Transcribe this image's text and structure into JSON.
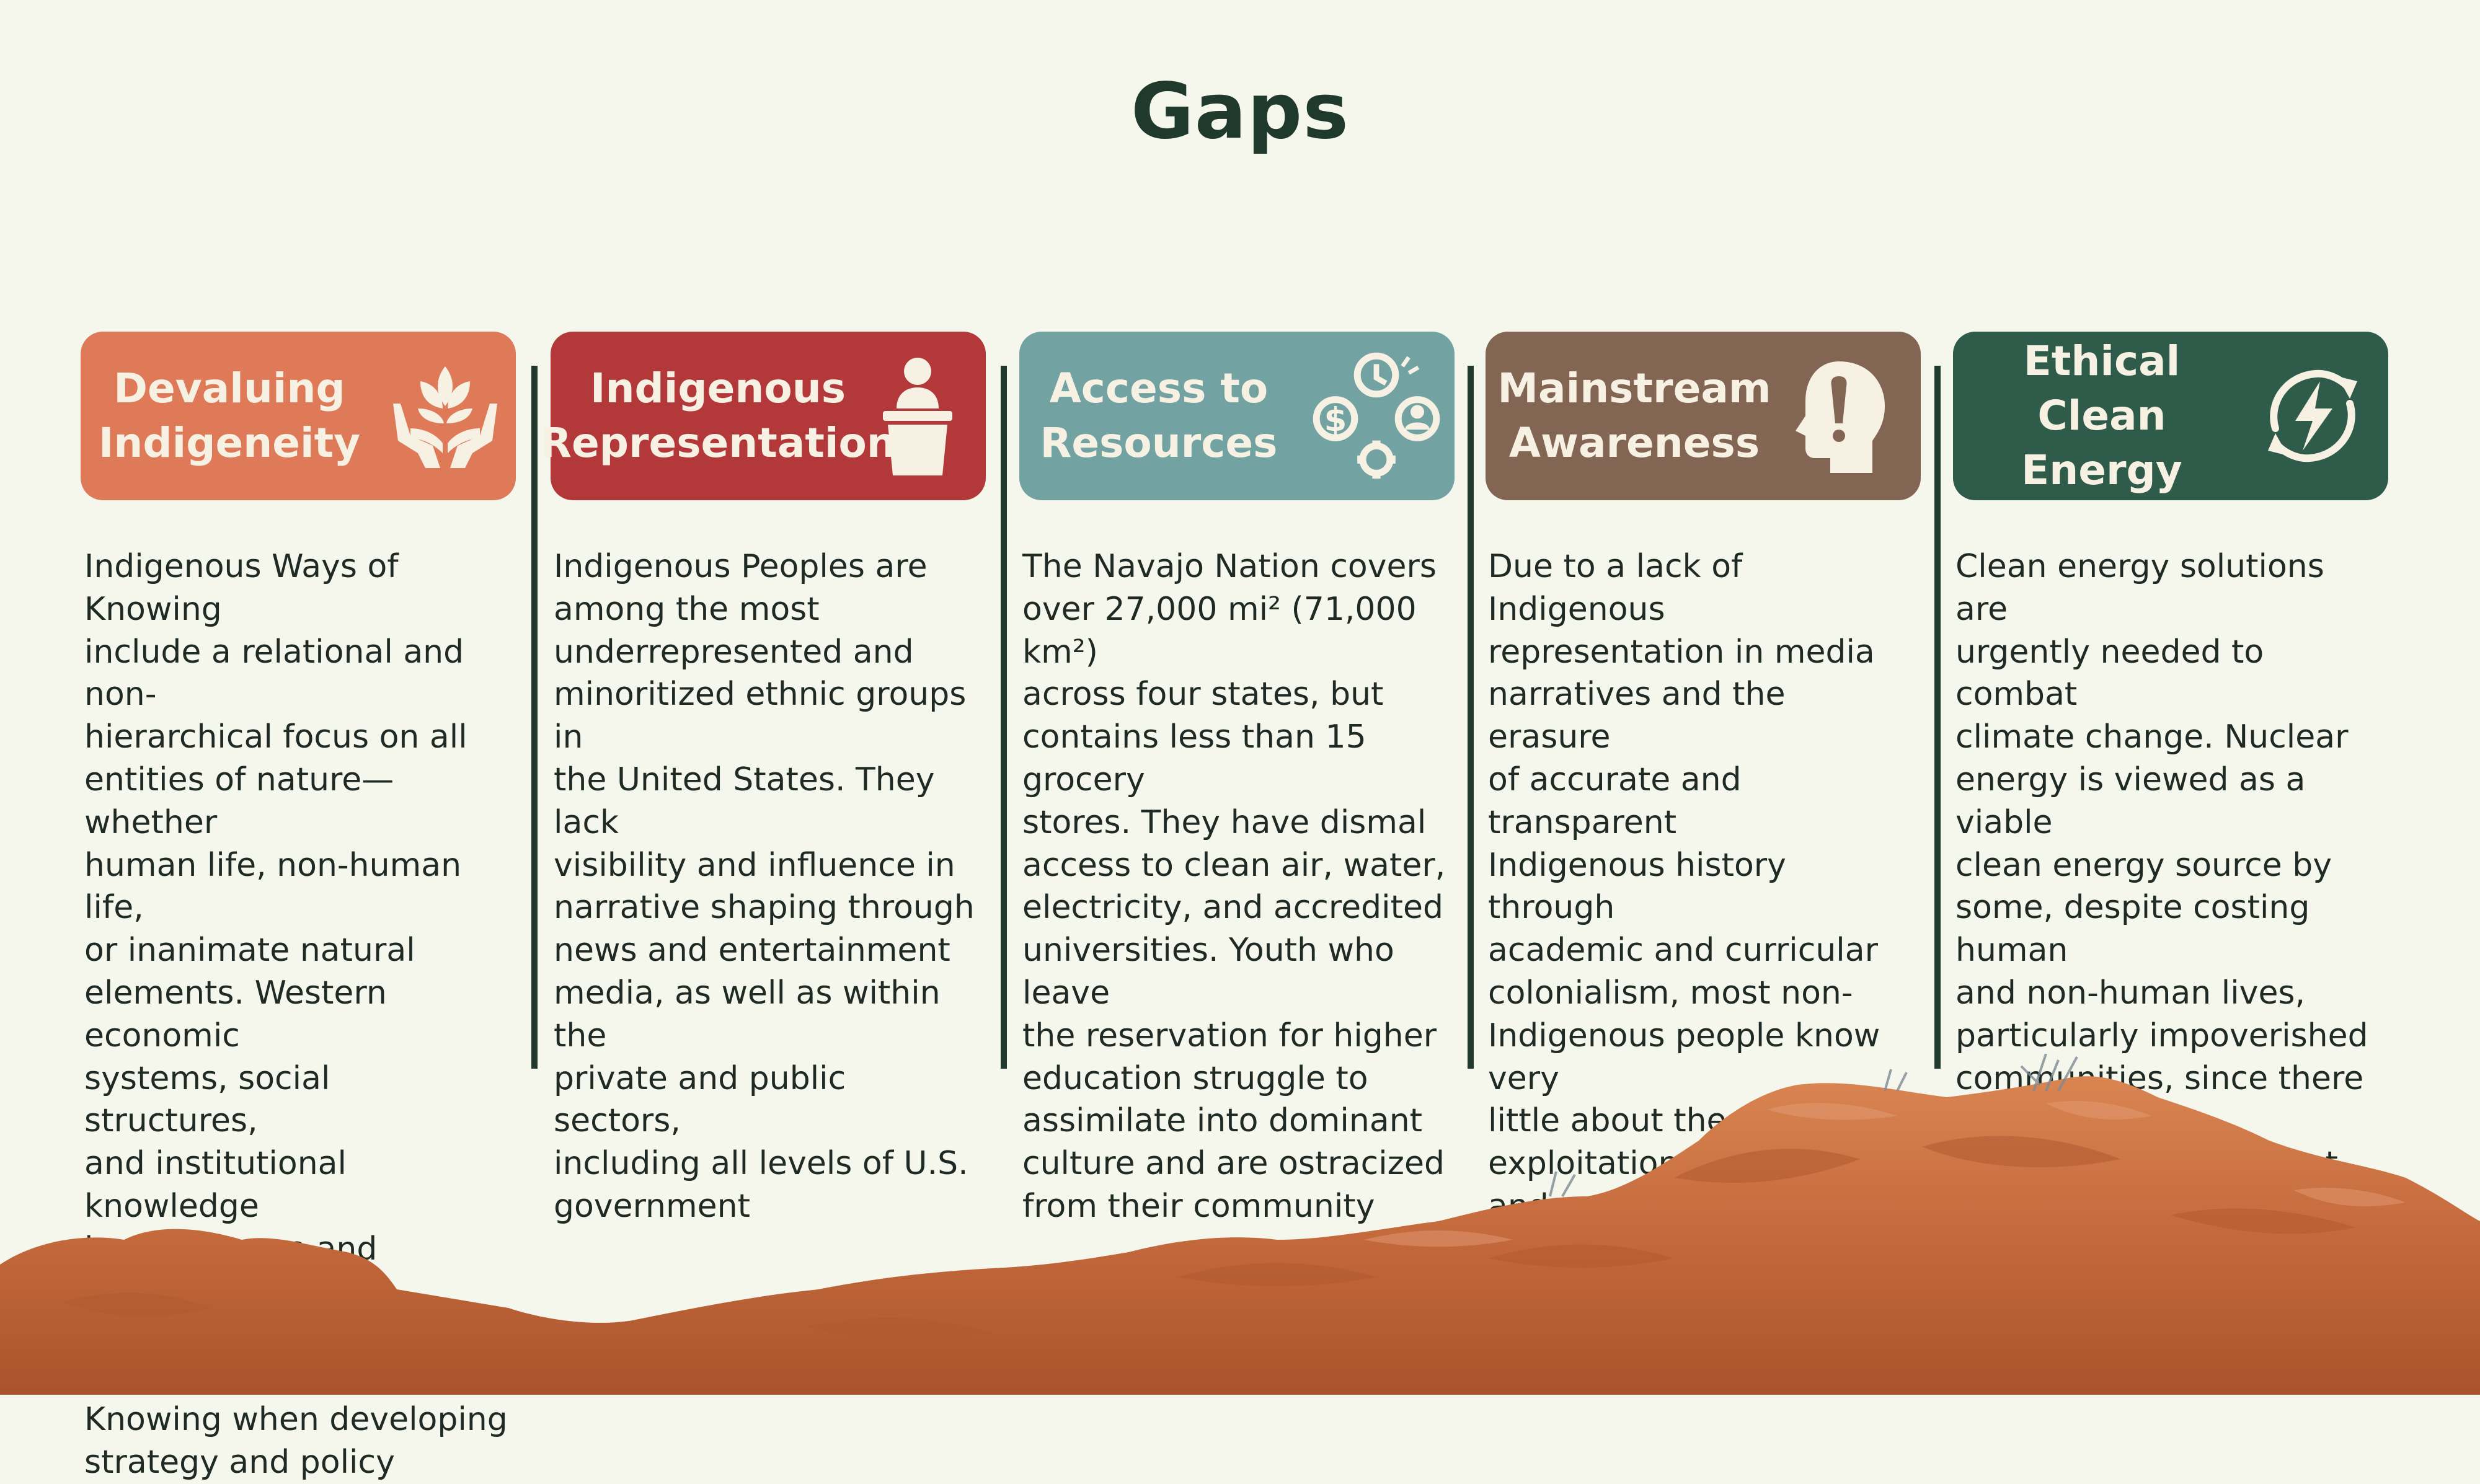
{
  "title": "Gaps",
  "colors": {
    "background": "#f5f6ec",
    "title": "#1f3a2c",
    "card_1": "#df7a58",
    "card_2": "#b3383a",
    "card_3": "#72a2a1",
    "card_4": "#836554",
    "card_5": "#2f5b4a",
    "card_text": "#f6f1e3",
    "rock": "#c4693c"
  },
  "cards": [
    {
      "title": "Devaluing\nIndigeneity",
      "icon": "hands-plant-icon",
      "text": "Indigenous Ways of Knowing\ninclude a relational and non-\nhierarchical focus on all\nentities of nature—whether\nhuman life, non-human life,\nor inanimate natural\nelements. Western economic\nsystems, social structures,\nand institutional knowledge\nlargely ignore and actively\ndevalue Indigenous Ways of\nKnowing when developing\nstrategy and policy"
    },
    {
      "title": "Indigenous\nRepresentation",
      "icon": "speaker-podium-icon",
      "text": "Indigenous Peoples are\namong the most\nunderrepresented and\nminoritized ethnic groups in\nthe United States. They lack\nvisibility and influence in\nnarrative shaping through\nnews and entertainment\nmedia, as well as within the\nprivate and public sectors,\nincluding all levels of U.S.\ngovernment"
    },
    {
      "title": "Access to\nResources",
      "icon": "resources-cycle-icon",
      "text": "The Navajo Nation covers\nover 27,000 mi² (71,000 km²)\nacross four states, but\ncontains less than 15 grocery\nstores. They have dismal\naccess to clean air, water,\nelectricity, and accredited\nuniversities. Youth who leave\nthe reservation for higher\neducation struggle to\nassimilate into dominant\nculture and are ostracized\nfrom their community"
    },
    {
      "title": "Mainstream\nAwareness",
      "icon": "head-exclamation-icon",
      "text": "Due to a lack of Indigenous\nrepresentation in media\nnarratives and the erasure\nof accurate and transparent\nIndigenous history through\nacademic and curricular\ncolonialism, most non-\nIndigenous people know very\nlittle about the exploitation\nand serious challenges faced\nby Indigenous communities"
    },
    {
      "title": "Ethical\nClean\nEnergy",
      "icon": "renewable-energy-icon",
      "text": "Clean energy solutions are\nurgently needed to combat\nclimate change. Nuclear\nenergy is viewed as a viable\nclean energy source by\nsome, despite costing human\nand non-human lives,\nparticularly impoverished\ncommunities, since there are\ncurrently no permanent\nsolutions for safe radioactive\nwaste disposal"
    }
  ]
}
